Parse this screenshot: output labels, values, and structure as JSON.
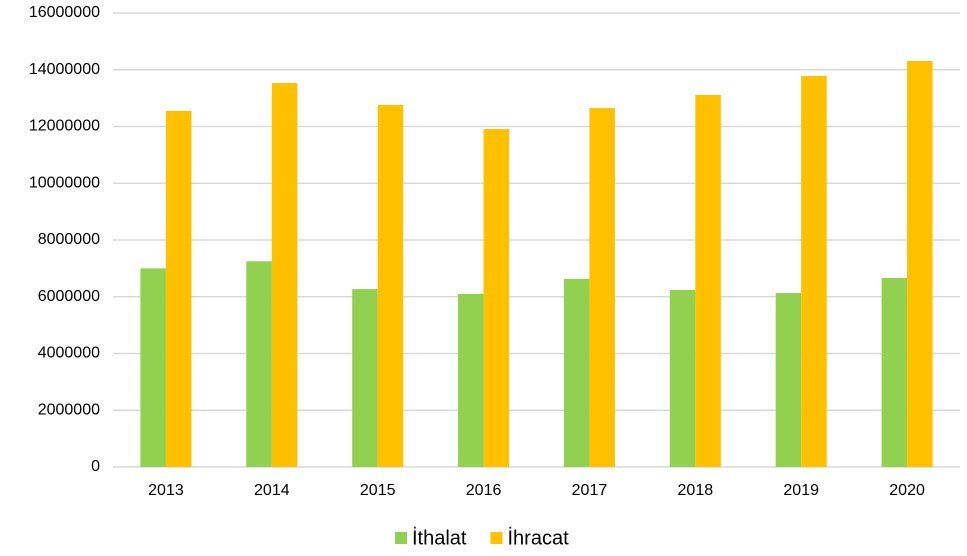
{
  "chart_data": {
    "type": "bar",
    "categories": [
      "2013",
      "2014",
      "2015",
      "2016",
      "2017",
      "2018",
      "2019",
      "2020"
    ],
    "series": [
      {
        "name": "İthalat",
        "color": "#92d050",
        "values": [
          7000000,
          7250000,
          6270000,
          6100000,
          6630000,
          6240000,
          6130000,
          6660000
        ]
      },
      {
        "name": "İhracat",
        "color": "#ffc000",
        "values": [
          12550000,
          13530000,
          12760000,
          11910000,
          12650000,
          13110000,
          13780000,
          14310000
        ]
      }
    ],
    "ylim": [
      0,
      16000000
    ],
    "yticks": [
      0,
      2000000,
      4000000,
      6000000,
      8000000,
      10000000,
      12000000,
      14000000,
      16000000
    ],
    "grid": true,
    "legend": "bottom"
  }
}
